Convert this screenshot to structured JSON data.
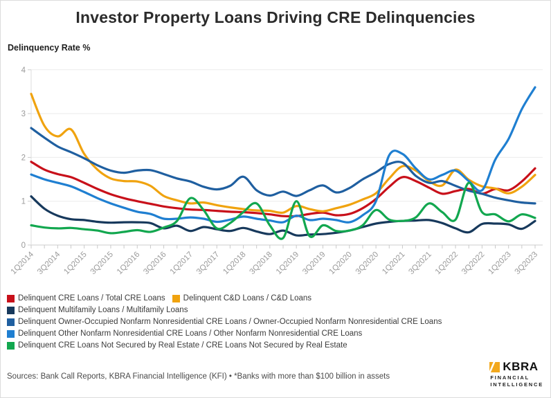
{
  "page": {
    "title": "Investor Property Loans Driving CRE Delinquencies",
    "y_axis_title": "Delinquency Rate %",
    "source_note": "Sources: Bank Call Reports, KBRA Financial Intelligence (KFI) • *Banks with more than $100 billion in assets",
    "logo": {
      "name": "KBRA",
      "line1": "FINANCIAL",
      "line2": "INTELLIGENCE",
      "accent": "#f2a81d"
    }
  },
  "chart_data": {
    "type": "line",
    "title": "Investor Property Loans Driving CRE Delinquencies",
    "xlabel": "",
    "ylabel": "Delinquency Rate %",
    "ylim": [
      0,
      4
    ],
    "yticks": [
      0,
      1,
      2,
      3,
      4
    ],
    "grid": "horizontal",
    "legend_position": "bottom-left",
    "x": [
      "1Q2014",
      "2Q2014",
      "3Q2014",
      "4Q2014",
      "1Q2015",
      "2Q2015",
      "3Q2015",
      "4Q2015",
      "1Q2016",
      "2Q2016",
      "3Q2016",
      "4Q2016",
      "1Q2017",
      "2Q2017",
      "3Q2017",
      "4Q2017",
      "1Q2018",
      "2Q2018",
      "3Q2018",
      "4Q2018",
      "1Q2019",
      "2Q2019",
      "3Q2019",
      "4Q2019",
      "1Q2020",
      "2Q2020",
      "3Q2020",
      "4Q2020",
      "1Q2021",
      "2Q2021",
      "3Q2021",
      "4Q2021",
      "1Q2022",
      "2Q2022",
      "3Q2022",
      "4Q2022",
      "1Q2023",
      "2Q2023",
      "3Q2023"
    ],
    "x_tick_labels_shown": [
      "1Q2014",
      "3Q2014",
      "1Q2015",
      "3Q2015",
      "1Q2016",
      "3Q2016",
      "1Q2017",
      "3Q2017",
      "1Q2018",
      "3Q2018",
      "1Q2019",
      "3Q2019",
      "1Q2020",
      "3Q2020",
      "1Q2021",
      "3Q2021",
      "1Q2022",
      "3Q2022",
      "1Q2023",
      "3Q2023"
    ],
    "series": [
      {
        "name": "Delinquent CRE Loans / Total CRE Loans",
        "color": "#c8101a",
        "values": [
          1.9,
          1.72,
          1.62,
          1.55,
          1.42,
          1.28,
          1.16,
          1.07,
          1.0,
          0.94,
          0.88,
          0.84,
          0.81,
          0.8,
          0.78,
          0.76,
          0.75,
          0.73,
          0.7,
          0.66,
          0.66,
          0.71,
          0.74,
          0.68,
          0.71,
          0.84,
          1.05,
          1.33,
          1.55,
          1.46,
          1.31,
          1.17,
          1.23,
          1.28,
          1.17,
          1.28,
          1.25,
          1.45,
          1.75
        ]
      },
      {
        "name": "Delinquent C&D Loans / C&D Loans",
        "color": "#f0a30f",
        "values": [
          3.45,
          2.72,
          2.48,
          2.64,
          2.08,
          1.72,
          1.52,
          1.46,
          1.45,
          1.35,
          1.12,
          1.02,
          0.95,
          0.97,
          0.91,
          0.86,
          0.82,
          0.79,
          0.78,
          0.74,
          0.89,
          0.82,
          0.77,
          0.84,
          0.92,
          1.04,
          1.18,
          1.52,
          1.8,
          1.7,
          1.46,
          1.36,
          1.72,
          1.49,
          1.34,
          1.29,
          1.18,
          1.33,
          1.6
        ]
      },
      {
        "name": "Delinquent Multifamily Loans / Multifamily Loans",
        "color": "#17395c",
        "values": [
          1.11,
          0.83,
          0.67,
          0.59,
          0.57,
          0.53,
          0.51,
          0.52,
          0.52,
          0.5,
          0.38,
          0.44,
          0.32,
          0.41,
          0.36,
          0.32,
          0.39,
          0.31,
          0.25,
          0.33,
          0.22,
          0.24,
          0.25,
          0.28,
          0.33,
          0.41,
          0.49,
          0.53,
          0.55,
          0.56,
          0.57,
          0.5,
          0.38,
          0.29,
          0.48,
          0.49,
          0.47,
          0.37,
          0.55
        ]
      },
      {
        "name": "Delinquent Owner-Occupied Nonfarm Nonresidential CRE Loans / Owner-Occupied Nonfarm Nonresidential CRE Loans",
        "color": "#1f5fa0",
        "values": [
          2.67,
          2.45,
          2.25,
          2.12,
          1.98,
          1.82,
          1.7,
          1.65,
          1.7,
          1.71,
          1.62,
          1.52,
          1.45,
          1.33,
          1.27,
          1.35,
          1.56,
          1.25,
          1.13,
          1.22,
          1.12,
          1.25,
          1.36,
          1.2,
          1.3,
          1.5,
          1.66,
          1.85,
          1.88,
          1.58,
          1.42,
          1.46,
          1.35,
          1.24,
          1.17,
          1.08,
          1.02,
          0.97,
          0.95
        ]
      },
      {
        "name": "Delinquent Other Nonfarm Nonresidential CRE Loans / Other Nonfarm Nonresidential CRE Loans",
        "color": "#1f7fd1",
        "values": [
          1.61,
          1.5,
          1.42,
          1.34,
          1.21,
          1.07,
          0.95,
          0.85,
          0.76,
          0.71,
          0.6,
          0.6,
          0.63,
          0.6,
          0.53,
          0.58,
          0.65,
          0.6,
          0.56,
          0.52,
          0.67,
          0.57,
          0.6,
          0.57,
          0.52,
          0.68,
          1.0,
          2.05,
          2.08,
          1.75,
          1.5,
          1.6,
          1.7,
          1.46,
          1.25,
          1.95,
          2.42,
          3.1,
          3.6
        ]
      },
      {
        "name": "Delinquent CRE Loans Not Secured by Real Estate / CRE Loans Not Secured by Real Estate",
        "color": "#12a74f",
        "values": [
          0.45,
          0.4,
          0.38,
          0.39,
          0.36,
          0.33,
          0.27,
          0.3,
          0.34,
          0.3,
          0.4,
          0.55,
          1.07,
          0.8,
          0.38,
          0.5,
          0.75,
          0.95,
          0.45,
          0.16,
          1.0,
          0.2,
          0.45,
          0.32,
          0.33,
          0.45,
          0.8,
          0.58,
          0.55,
          0.63,
          0.95,
          0.75,
          0.58,
          1.42,
          0.75,
          0.7,
          0.54,
          0.7,
          0.62
        ]
      }
    ],
    "legend_rows": [
      [
        0,
        1
      ],
      [
        2
      ],
      [
        3
      ],
      [
        4
      ],
      [
        5
      ]
    ]
  }
}
